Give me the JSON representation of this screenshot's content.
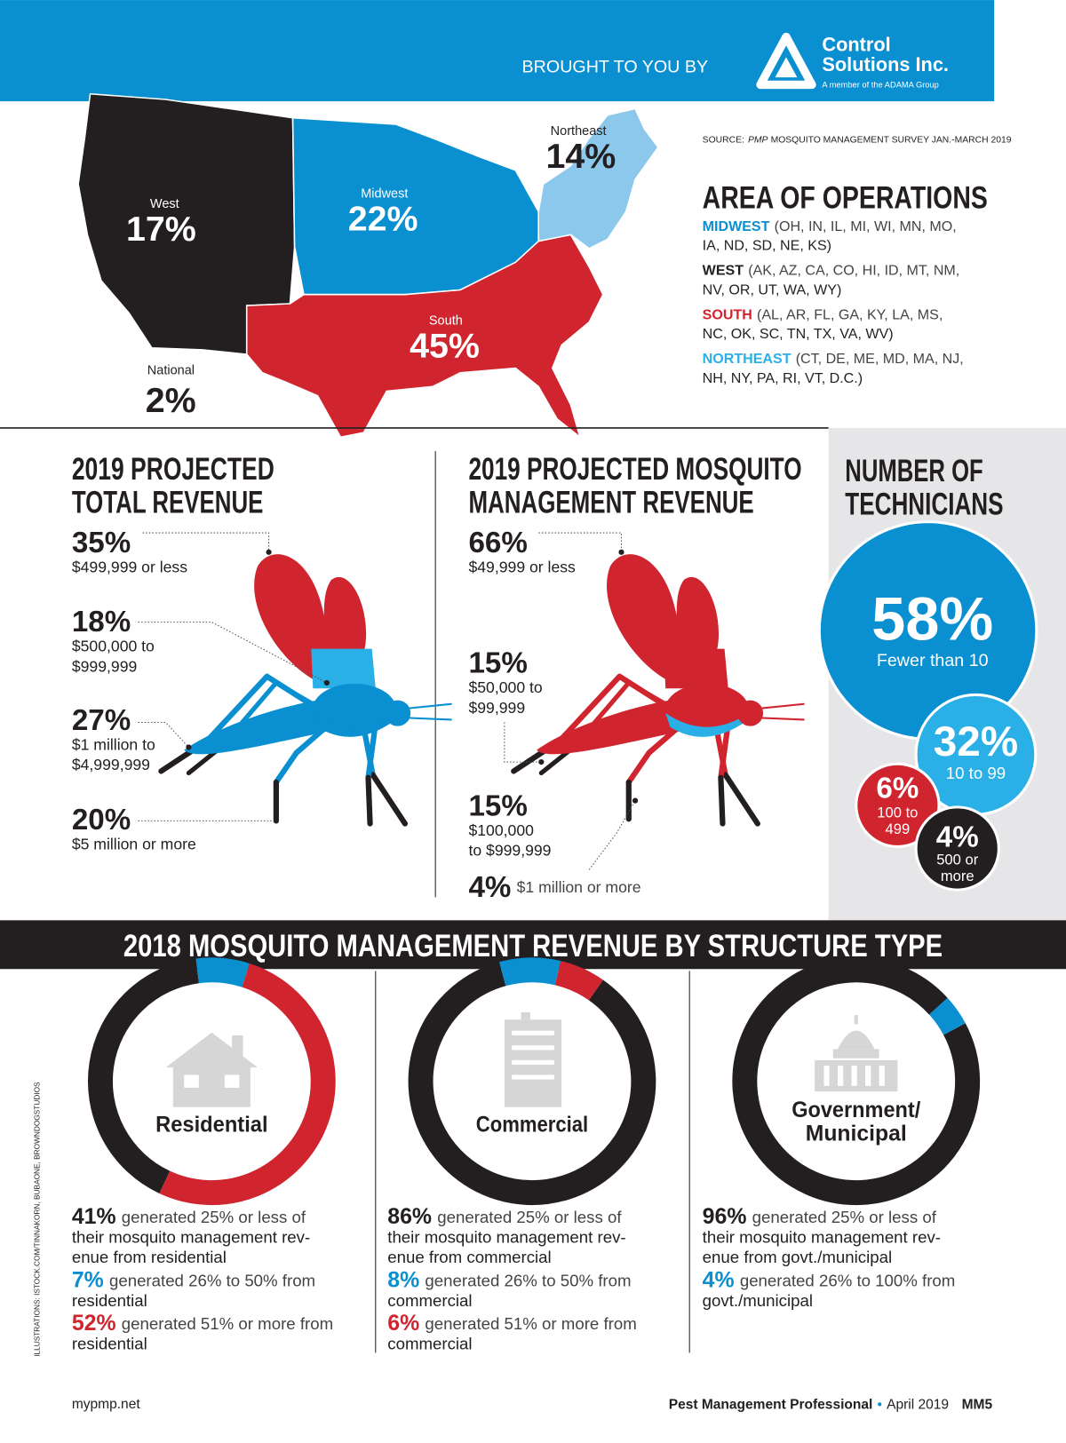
{
  "header": {
    "brought_by": "BROUGHT TO YOU BY",
    "brand": [
      "Control",
      "Solutions Inc."
    ],
    "tagline": "A member of the ADAMA Group"
  },
  "source": {
    "prefix": "SOURCE:",
    "publication": "PMP",
    "rest": "MOSQUITO MANAGEMENT SURVEY JAN.-MARCH 2019"
  },
  "map": {
    "regions": [
      {
        "name": "Northeast",
        "share": "14%"
      },
      {
        "name": "West",
        "share": "17%"
      },
      {
        "name": "Midwest",
        "share": "22%"
      },
      {
        "name": "South",
        "share": "45%"
      },
      {
        "name": "National",
        "share": "2%"
      }
    ]
  },
  "areas": {
    "title": "AREA OF OPERATIONS",
    "items": [
      {
        "name": "MIDWEST",
        "lines": [
          "(OH, IN, IL, MI, WI, MN, MO,",
          "IA, ND, SD, NE, KS)"
        ]
      },
      {
        "name": "WEST",
        "lines": [
          "(AK, AZ, CA, CO, HI, ID, MT, NM,",
          "NV, OR, UT, WA, WY)"
        ]
      },
      {
        "name": "SOUTH",
        "lines": [
          "(AL, AR, FL, GA, KY, LA, MS,",
          "NC, OK, SC, TN, TX, VA, WV)"
        ]
      },
      {
        "name": "NORTHEAST",
        "lines": [
          "(CT, DE, ME, MD, MA, NJ,",
          "NH, NY, PA, RI, VT, D.C.)"
        ]
      }
    ]
  },
  "total_revenue": {
    "title": [
      "2019 PROJECTED",
      "TOTAL REVENUE"
    ],
    "items": [
      {
        "share": "35%",
        "lines": [
          "$499,999 or less"
        ]
      },
      {
        "share": "18%",
        "lines": [
          "$500,000 to",
          "$999,999"
        ]
      },
      {
        "share": "27%",
        "lines": [
          "$1 million to",
          "$4,999,999"
        ]
      },
      {
        "share": "20%",
        "lines": [
          "$5 million or more"
        ]
      }
    ]
  },
  "mosquito_revenue": {
    "title": [
      "2019 PROJECTED MOSQUITO",
      "MANAGEMENT REVENUE"
    ],
    "items": [
      {
        "share": "66%",
        "lines": [
          "$49,999 or less"
        ]
      },
      {
        "share": "15%",
        "lines": [
          "$50,000 to",
          "$99,999"
        ]
      },
      {
        "share": "15%",
        "lines": [
          "$100,000",
          "to $999,999"
        ]
      },
      {
        "share": "4%",
        "lines": [
          "$1 million or more"
        ]
      }
    ]
  },
  "technicians": {
    "title": [
      "NUMBER OF",
      "TECHNICIANS"
    ],
    "items": [
      {
        "share": "58%",
        "lines": [
          "Fewer than 10"
        ]
      },
      {
        "share": "32%",
        "lines": [
          "10 to 99"
        ]
      },
      {
        "share": "6%",
        "lines": [
          "100 to",
          "499"
        ]
      },
      {
        "share": "4%",
        "lines": [
          "500 or",
          "more"
        ]
      }
    ]
  },
  "structure_type": {
    "title": "2018 MOSQUITO MANAGEMENT REVENUE BY STRUCTURE TYPE",
    "panels": [
      {
        "name": [
          "Residential"
        ],
        "stats": [
          {
            "value": 41,
            "label": "41%",
            "color": "#231f20",
            "lines": [
              "generated 25% or less of",
              "their mosquito management rev-",
              "enue from residential"
            ]
          },
          {
            "value": 7,
            "label": "7%",
            "color": "#0a8fd0",
            "lines": [
              "generated 26% to 50% from",
              "residential"
            ]
          },
          {
            "value": 52,
            "label": "52%",
            "color": "#d0252f",
            "lines": [
              "generated 51% or more from",
              "residential"
            ]
          }
        ]
      },
      {
        "name": [
          "Commercial"
        ],
        "stats": [
          {
            "value": 86,
            "label": "86%",
            "color": "#231f20",
            "lines": [
              "generated 25% or less of",
              "their mosquito management rev-",
              "enue from commercial"
            ]
          },
          {
            "value": 8,
            "label": "8%",
            "color": "#0a8fd0",
            "lines": [
              "generated 26% to 50% from",
              "commercial"
            ]
          },
          {
            "value": 6,
            "label": "6%",
            "color": "#d0252f",
            "lines": [
              "generated 51% or more from",
              "commercial"
            ]
          }
        ]
      },
      {
        "name": [
          "Government/",
          "Municipal"
        ],
        "stats": [
          {
            "value": 96,
            "label": "96%",
            "color": "#231f20",
            "lines": [
              "generated 25% or less of",
              "their mosquito management rev-",
              "enue from govt./municipal"
            ]
          },
          {
            "value": 4,
            "label": "4%",
            "color": "#0a8fd0",
            "lines": [
              "generated 26% to 100% from",
              "govt./municipal"
            ]
          }
        ]
      }
    ]
  },
  "credit": "ILLUSTRATIONS: ISTOCK.COM/TINNAKORN, BUBAONE, BROWNDOGSTUDIOS",
  "footer": {
    "site": "mypmp.net",
    "publication": "Pest Management Professional",
    "bullet": "•",
    "issue": "April 2019",
    "page": "MM5"
  }
}
